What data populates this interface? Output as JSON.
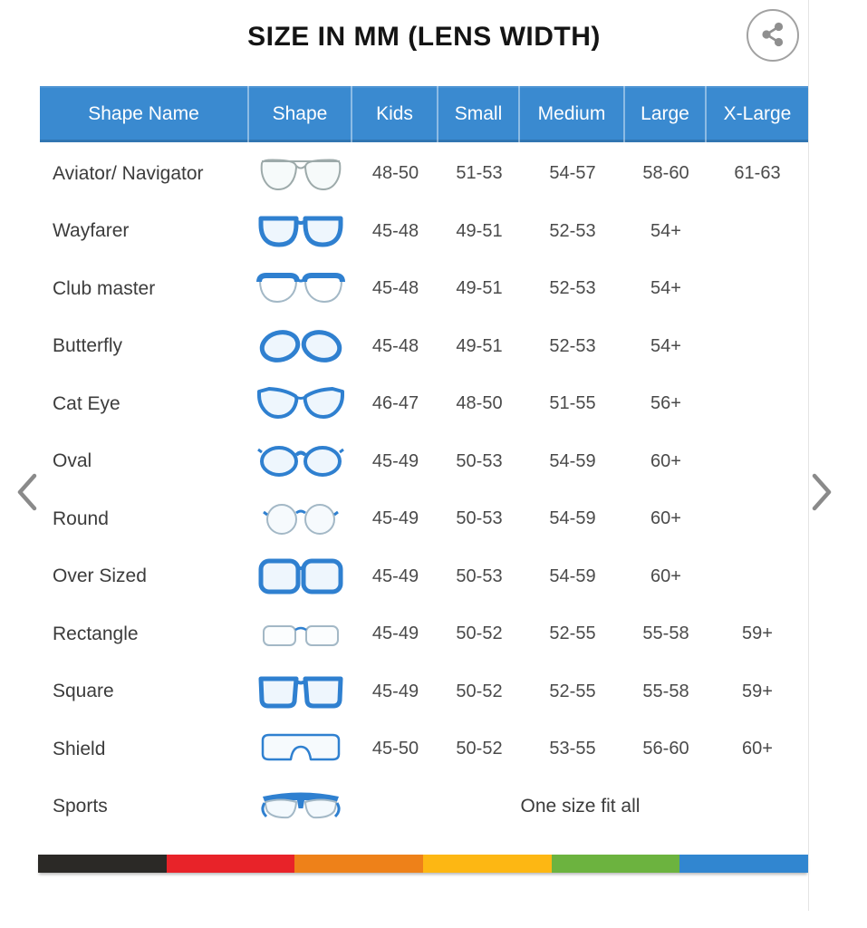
{
  "page": {
    "title": "SIZE IN MM (LENS WIDTH)"
  },
  "share": {
    "icon": "share-icon"
  },
  "nav": {
    "prev_icon": "chevron-left-icon",
    "next_icon": "chevron-right-icon"
  },
  "colors": {
    "header_bg": "#3a8ad0",
    "frame_blue": "#2f80d0",
    "frame_gray": "#a3b8c6",
    "aviator_gray": "#9daaaa",
    "stripe": [
      "#2b2926",
      "#e82329",
      "#ee8119",
      "#fdb713",
      "#6cb33f",
      "#3186d0"
    ]
  },
  "table": {
    "columns": [
      "Shape Name",
      "Shape",
      "Kids",
      "Small",
      "Medium",
      "Large",
      "X-Large"
    ],
    "rows": [
      {
        "name": "Aviator/ Navigator",
        "icon": "aviator-glasses-icon",
        "sizes": [
          "48-50",
          "51-53",
          "54-57",
          "58-60",
          "61-63"
        ]
      },
      {
        "name": "Wayfarer",
        "icon": "wayfarer-glasses-icon",
        "sizes": [
          "45-48",
          "49-51",
          "52-53",
          "54+",
          ""
        ]
      },
      {
        "name": "Club master",
        "icon": "clubmaster-glasses-icon",
        "sizes": [
          "45-48",
          "49-51",
          "52-53",
          "54+",
          ""
        ]
      },
      {
        "name": "Butterfly",
        "icon": "butterfly-glasses-icon",
        "sizes": [
          "45-48",
          "49-51",
          "52-53",
          "54+",
          ""
        ]
      },
      {
        "name": "Cat Eye",
        "icon": "cateye-glasses-icon",
        "sizes": [
          "46-47",
          "48-50",
          "51-55",
          "56+",
          ""
        ]
      },
      {
        "name": "Oval",
        "icon": "oval-glasses-icon",
        "sizes": [
          "45-49",
          "50-53",
          "54-59",
          "60+",
          ""
        ]
      },
      {
        "name": "Round",
        "icon": "round-glasses-icon",
        "sizes": [
          "45-49",
          "50-53",
          "54-59",
          "60+",
          ""
        ]
      },
      {
        "name": "Over Sized",
        "icon": "oversized-glasses-icon",
        "sizes": [
          "45-49",
          "50-53",
          "54-59",
          "60+",
          ""
        ]
      },
      {
        "name": "Rectangle",
        "icon": "rectangle-glasses-icon",
        "sizes": [
          "45-49",
          "50-52",
          "52-55",
          "55-58",
          "59+"
        ]
      },
      {
        "name": "Square",
        "icon": "square-glasses-icon",
        "sizes": [
          "45-49",
          "50-52",
          "52-55",
          "55-58",
          "59+"
        ]
      },
      {
        "name": "Shield",
        "icon": "shield-glasses-icon",
        "sizes": [
          "45-50",
          "50-52",
          "53-55",
          "56-60",
          "60+"
        ]
      },
      {
        "name": "Sports",
        "icon": "sports-glasses-icon",
        "span_text": "One size fit all"
      }
    ]
  }
}
